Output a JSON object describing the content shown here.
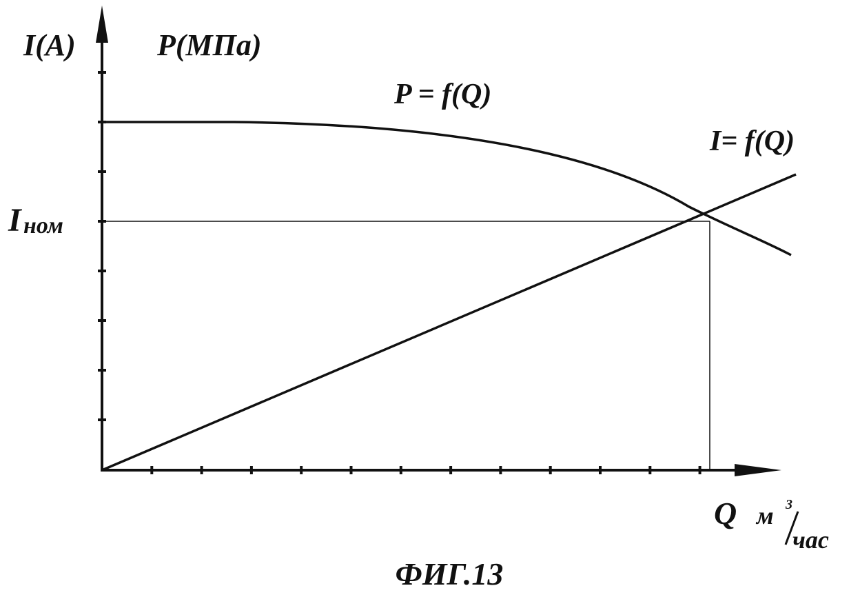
{
  "axes": {
    "y_label_current": "I(A)",
    "y_label_pressure": "P(MПa)",
    "x_label": "Q",
    "x_unit": {
      "numerator": "м",
      "power": "3",
      "denominator": "час"
    }
  },
  "curves": {
    "pressure_label": "P = f(Q)",
    "current_label": "I= f(Q)"
  },
  "nominal": {
    "symbol": "I",
    "subscript": "ном"
  },
  "caption": "ФИГ.13"
}
